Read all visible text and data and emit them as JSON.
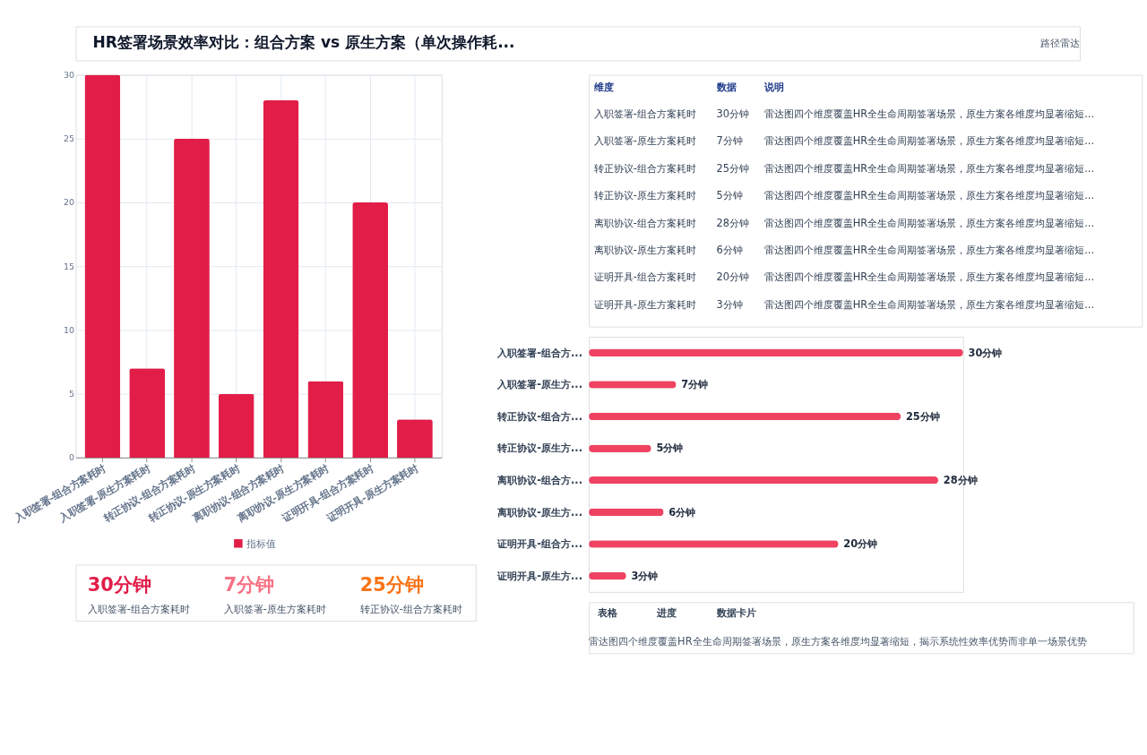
{
  "chart_data": [
    {
      "type": "bar",
      "title": "HR签署场景效率对比：组合方案 vs 原生方案（单次操作耗...",
      "categories": [
        "入职签署-组合方案耗时",
        "入职签署-原生方案耗时",
        "转正协议-组合方案耗时",
        "转正协议-原生方案耗时",
        "离职协议-组合方案耗时",
        "离职协议-原生方案耗时",
        "证明开具-组合方案耗时",
        "证明开具-原生方案耗时"
      ],
      "series": [
        {
          "name": "指标值",
          "color": "#e11d48",
          "values": [
            30,
            7,
            25,
            5,
            28,
            6,
            20,
            3
          ]
        }
      ],
      "ylim": [
        0,
        30
      ],
      "yticks": [
        0,
        5,
        10,
        15,
        20,
        25,
        30
      ],
      "grid": true,
      "legend": "bottom",
      "annotations": [
        "路径雷达"
      ]
    },
    {
      "type": "other",
      "annotations": [
        "维度",
        "数据",
        "说明",
        "入职签署-组合方案耗时",
        "30分钟",
        "雷达图四个维度覆盖HR全生命周期签署场景，原生方案各维度均显著缩短...",
        "入职签署-原生方案耗时",
        "7分钟",
        "雷达图四个维度覆盖HR全生命周期签署场景，原生方案各维度均显著缩短...",
        "转正协议-组合方案耗时",
        "25分钟",
        "雷达图四个维度覆盖HR全生命周期签署场景，原生方案各维度均显著缩短...",
        "转正协议-原生方案耗时",
        "5分钟",
        "雷达图四个维度覆盖HR全生命周期签署场景，原生方案各维度均显著缩短...",
        "离职协议-组合方案耗时",
        "28分钟",
        "雷达图四个维度覆盖HR全生命周期签署场景，原生方案各维度均显著缩短...",
        "离职协议-原生方案耗时",
        "6分钟",
        "雷达图四个维度覆盖HR全生命周期签署场景，原生方案各维度均显著缩短...",
        "证明开具-组合方案耗时",
        "20分钟",
        "雷达图四个维度覆盖HR全生命周期签署场景，原生方案各维度均显著缩短...",
        "证明开具-原生方案耗时",
        "3分钟",
        "雷达图四个维度覆盖HR全生命周期签署场景，原生方案各维度均显著缩短..."
      ]
    },
    {
      "type": "bar",
      "orientation": "horizontal",
      "categories": [
        "入职签署-组合方...",
        "入职签署-原生方...",
        "转正协议-组合方...",
        "转正协议-原生方...",
        "离职协议-组合方...",
        "离职协议-原生方...",
        "证明开具-组合方...",
        "证明开具-原生方..."
      ],
      "color": "#ef4361",
      "values": [
        30,
        7,
        25,
        5,
        28,
        6,
        20,
        3
      ],
      "value_labels": [
        "30分钟",
        "7分钟",
        "25分钟",
        "5分钟",
        "28分钟",
        "6分钟",
        "20分钟",
        "3分钟"
      ],
      "tick_labels": "y"
    },
    {
      "type": "other",
      "annotations": [
        "30分钟",
        "入职签署-组合方案耗时",
        "7分钟",
        "入职签署-原生方案耗时",
        "25分钟",
        "转正协议-组合方案耗时"
      ],
      "colors": [
        "#e11d48",
        "#f87185",
        "#f97316"
      ]
    },
    {
      "type": "other",
      "annotations": [
        "表格",
        "进度",
        "数据卡片",
        "雷达图四个维度覆盖HR全生命周期签署场景，原生方案各维度均显著缩短，揭示系统性效率优势而非单一场景优势"
      ]
    }
  ]
}
